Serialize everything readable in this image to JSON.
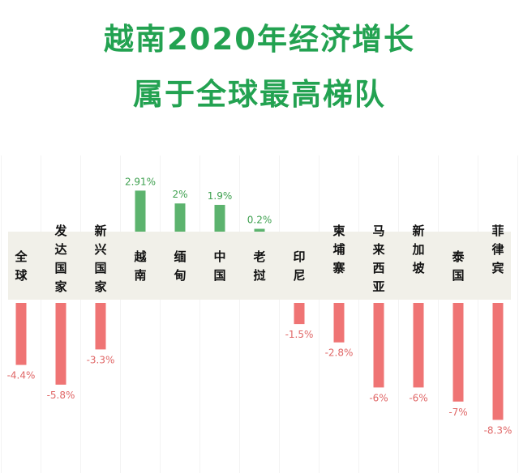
{
  "chart_data": {
    "type": "bar",
    "title": "越南2020年经济增长",
    "subtitle": "属于全球最高梯队",
    "categories": [
      "全球",
      "发达国家",
      "新兴国家",
      "越南",
      "缅甸",
      "中国",
      "老挝",
      "印尼",
      "柬埔寨",
      "马来西亚",
      "新加坡",
      "泰国",
      "菲律宾"
    ],
    "values": [
      -4.4,
      -5.8,
      -3.3,
      2.91,
      2,
      1.9,
      0.2,
      -1.5,
      -2.8,
      -6,
      -6,
      -7,
      -8.3
    ],
    "value_labels": [
      "-4.4%",
      "-5.8%",
      "-3.3%",
      "2.91%",
      "2%",
      "1.9%",
      "0.2%",
      "-1.5%",
      "-2.8%",
      "-6%",
      "-6%",
      "-7%",
      "-8.3%"
    ],
    "xlabel": "",
    "ylabel": "",
    "grid": false,
    "colors": {
      "positive": "#5cb36e",
      "negative": "#ef7474",
      "positive_label": "#3ea04f",
      "negative_label": "#e06767",
      "category_label": "#111111",
      "band": "#f1f0e9"
    }
  }
}
